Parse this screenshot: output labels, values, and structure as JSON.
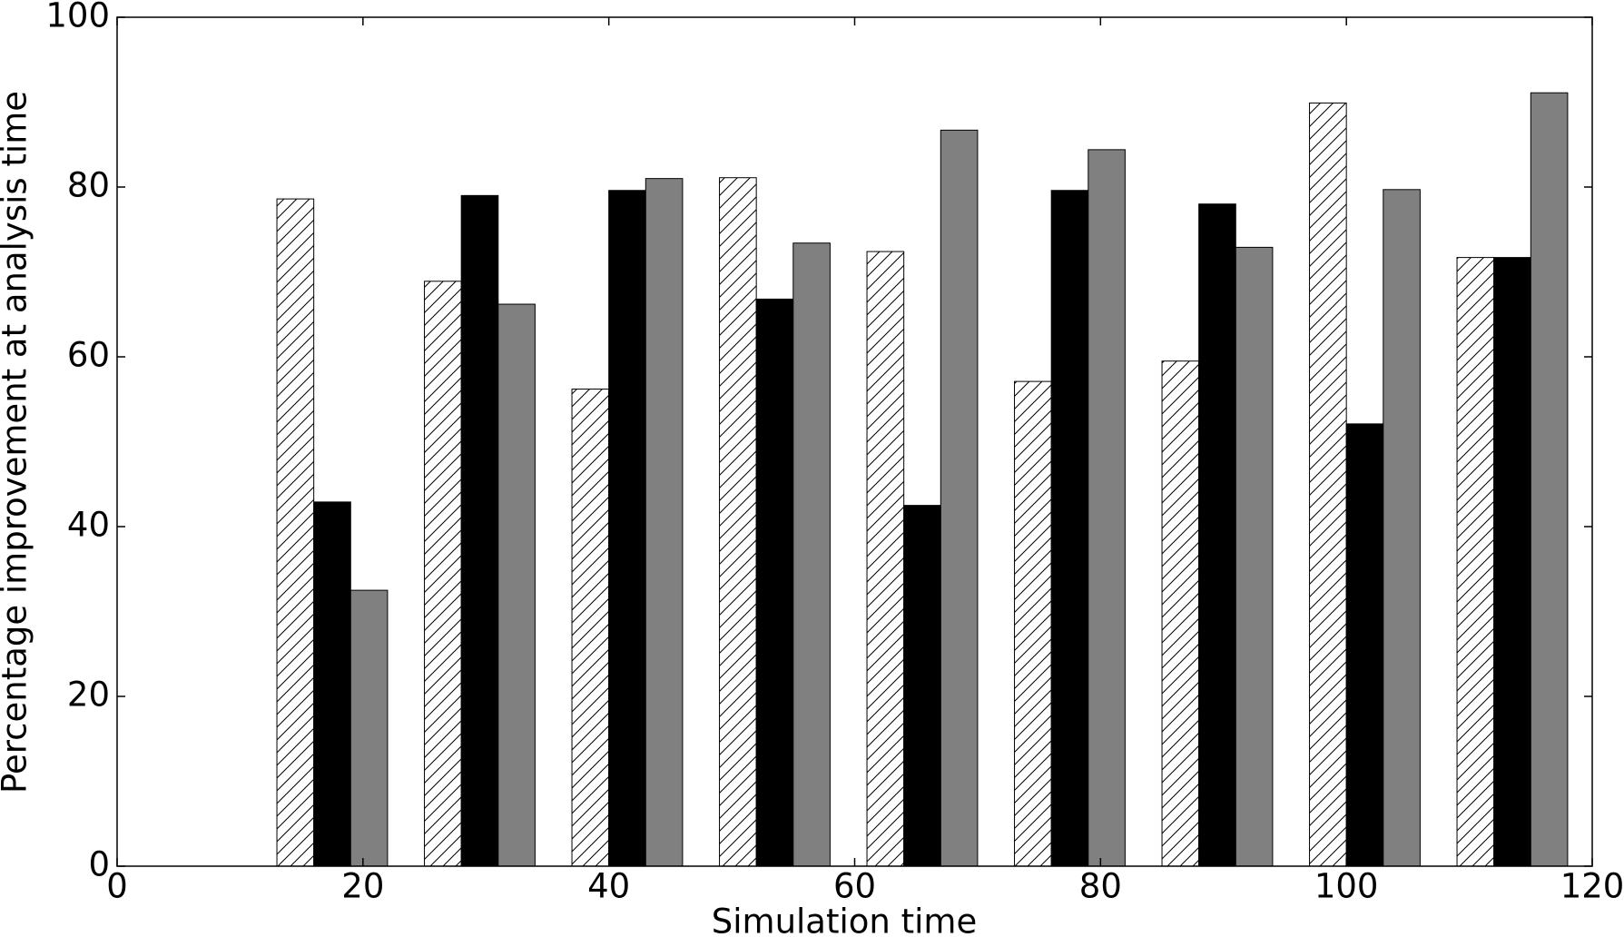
{
  "chart_data": {
    "type": "bar",
    "xlabel": "Simulation time",
    "ylabel": "Percentage improvement at analysis time",
    "xlim": [
      0,
      120
    ],
    "ylim": [
      0,
      100
    ],
    "xticks": [
      0,
      20,
      40,
      60,
      80,
      100,
      120
    ],
    "yticks": [
      0,
      20,
      40,
      60,
      80,
      100
    ],
    "bar_width": 3,
    "series": [
      {
        "color": "#ffffff",
        "hatch": "/",
        "x": [
          13,
          25,
          37,
          49,
          61,
          73,
          85,
          97,
          109
        ],
        "values": [
          78.6,
          68.9,
          56.2,
          81.1,
          72.4,
          57.1,
          59.5,
          89.9,
          71.7
        ]
      },
      {
        "color": "#000000",
        "x": [
          16,
          28,
          40,
          52,
          64,
          76,
          88,
          100,
          112
        ],
        "values": [
          42.9,
          79.0,
          79.6,
          66.8,
          42.5,
          79.6,
          78.0,
          52.1,
          71.7
        ]
      },
      {
        "color": "#808080",
        "x": [
          19,
          31,
          43,
          55,
          67,
          79,
          91,
          103,
          115
        ],
        "values": [
          32.5,
          66.2,
          81.0,
          73.4,
          86.7,
          84.4,
          72.9,
          79.7,
          91.1
        ]
      }
    ]
  }
}
